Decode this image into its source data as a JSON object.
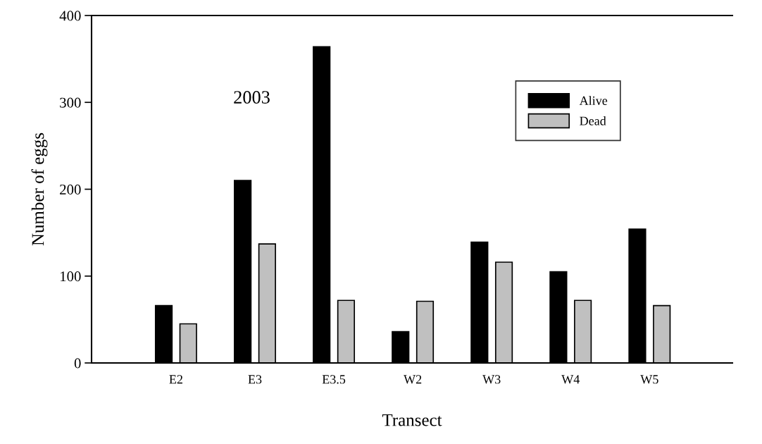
{
  "chart_data": {
    "type": "bar",
    "xlabel": "Transect",
    "ylabel": "Number of eggs",
    "categories": [
      "E2",
      "E3",
      "E3.5",
      "W2",
      "W3",
      "W4",
      "W5"
    ],
    "series": [
      {
        "name": "Alive",
        "color": "#000000",
        "values": [
          66,
          210,
          364,
          36,
          139,
          105,
          154
        ]
      },
      {
        "name": "Dead",
        "color": "#c0c0c0",
        "values": [
          45,
          137,
          72,
          71,
          116,
          72,
          66
        ]
      }
    ],
    "ylim": [
      0,
      400
    ],
    "yticks": [
      0,
      100,
      200,
      300,
      400
    ],
    "grid": false,
    "legend": "top right",
    "annotations": [
      "2003"
    ]
  }
}
